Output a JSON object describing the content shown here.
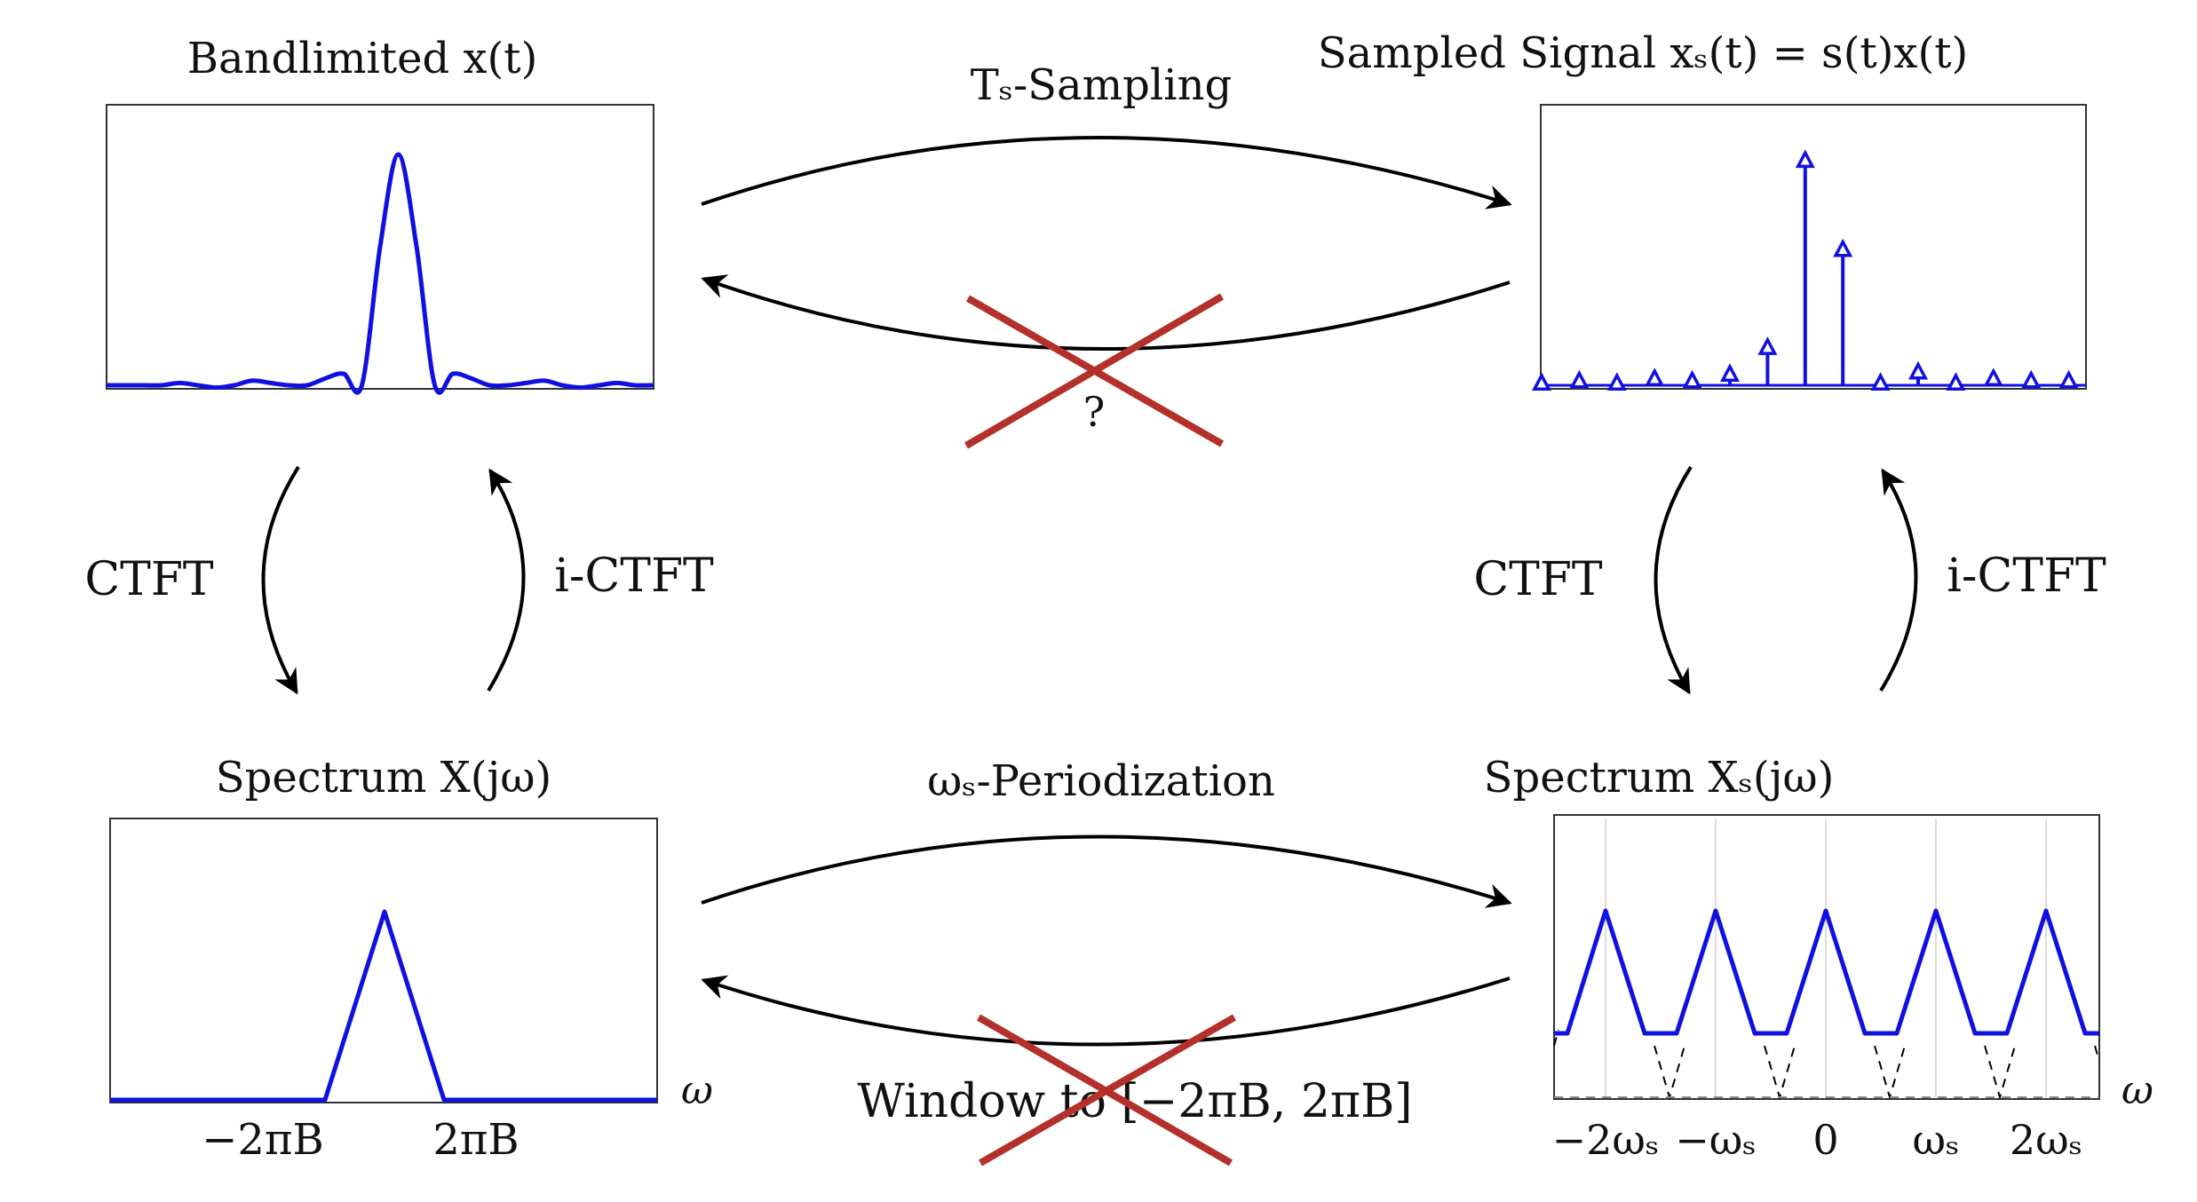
{
  "panels": {
    "tl_title": "Bandlimited x(t)",
    "tr_title": "Sampled Signal xₛ(t) = s(t)x(t)",
    "bl_title": "Spectrum X(jω)",
    "br_title": "Spectrum Xₛ(jω)"
  },
  "arrows": {
    "sampling": "Tₛ-Sampling",
    "question": "?",
    "periodization": "ωₛ-Periodization",
    "window": "Window to [−2πB, 2πB]",
    "ctft_left": "CTFT",
    "ictft_left": "i-CTFT",
    "ctft_right": "CTFT",
    "ictft_right": "i-CTFT"
  },
  "axes": {
    "omega": "ω",
    "bl_ticks": [
      "−2πB",
      "2πB"
    ],
    "br_ticks": [
      "−2ωₛ",
      "−ωₛ",
      "0",
      "ωₛ",
      "2ωₛ"
    ]
  },
  "colors": {
    "signal": "#1010e0",
    "cross": "#b4302a",
    "arrow": "#000000"
  },
  "chart_data": [
    {
      "type": "line",
      "name": "x(t)",
      "samples": [
        0.0,
        0.0,
        0.0,
        0.0,
        0.01,
        0.0,
        -0.01,
        0.0,
        0.02,
        0.01,
        0.0,
        0.0,
        0.03,
        0.05,
        0.0,
        0.6,
        1.0,
        0.6,
        0.0,
        0.05,
        0.03,
        0.0,
        0.0,
        0.01,
        0.02,
        0.0,
        -0.01,
        0.0,
        0.01,
        0.0,
        0.0
      ],
      "ylim": [
        -0.05,
        1.1
      ]
    },
    {
      "type": "stem",
      "name": "x_s(t)",
      "values": [
        0.0,
        0.01,
        0.0,
        0.02,
        0.01,
        0.04,
        0.16,
        1.0,
        0.6,
        0.0,
        0.05,
        0.0,
        0.02,
        0.01,
        0.01
      ],
      "ylim": [
        -0.05,
        1.1
      ]
    },
    {
      "type": "line",
      "name": "X(jω)",
      "shape": "triangle",
      "center": 0,
      "half_width": "2πB",
      "peak": 1,
      "x_ticks": [
        "−2πB",
        "2πB"
      ]
    },
    {
      "type": "line",
      "name": "Xₛ(jω)",
      "shape": "periodic triangles",
      "period": "ωₛ",
      "centers": [
        -2,
        -1,
        0,
        1,
        2
      ],
      "peak": 1,
      "x_ticks": [
        "−2ωₛ",
        "−ωₛ",
        "0",
        "ωₛ",
        "2ωₛ"
      ],
      "grid": true
    }
  ]
}
